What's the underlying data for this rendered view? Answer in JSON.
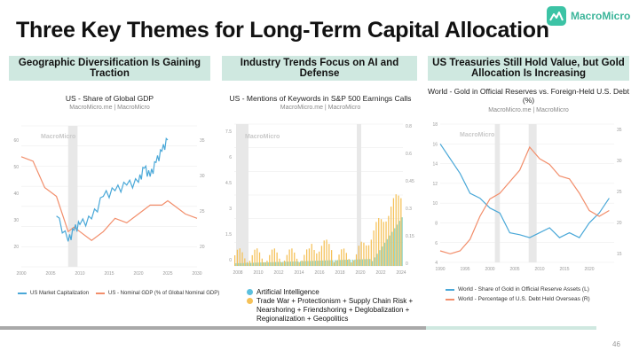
{
  "slide": {
    "title": "Three Key Themes for Long-Term Capital Allocation",
    "logo_text": "MacroMicro",
    "page_number": "46",
    "accent_color": "#cfe8e0",
    "brand_color": "#3cc3a5"
  },
  "columns": [
    {
      "header": "Geographic Diversification Is Gaining Traction",
      "chart_title": "US - Share of Global GDP",
      "chart_source": "MacroMicro.me | MacroMicro",
      "watermark": "MacroMicro",
      "legend": [
        {
          "label": "US Market Capitalization",
          "color": "#4aa8d8"
        },
        {
          "label": "US - Nominal GDP (% of Global Nominal GDP)",
          "color": "#f28e6b"
        }
      ]
    },
    {
      "header": "Industry Trends Focus on AI and Defense",
      "chart_title": "US - Mentions of Keywords in S&P 500 Earnings Calls",
      "chart_source": "MacroMicro.me | MacroMicro",
      "watermark": "MacroMicro",
      "legend": [
        {
          "label": "Artificial Intelligence",
          "color": "#5cc0de"
        },
        {
          "label": "Trade War + Protectionism + Supply Chain Risk + Nearshoring + Friendshoring + Deglobalization + Regionalization + Geopolitics",
          "color": "#f5c158"
        }
      ]
    },
    {
      "header": "US Treasuries Still Hold Value, but Gold Allocation Is Increasing",
      "chart_title": "World - Gold in Official Reserves vs. Foreign-Held U.S. Debt (%)",
      "chart_source": "MacroMicro.me | MacroMicro",
      "watermark": "MacroMicro",
      "legend": [
        {
          "label": "World - Share of Gold in Official Reserve Assets (L)",
          "color": "#4aa8d8"
        },
        {
          "label": "World - Percentage of U.S. Debt Held Overseas (R)",
          "color": "#f28e6b"
        }
      ]
    }
  ],
  "chart_data": [
    {
      "type": "line",
      "title": "US - Share of Global GDP",
      "x": [
        2000,
        2002,
        2004,
        2006,
        2008,
        2009,
        2010,
        2012,
        2014,
        2016,
        2018,
        2020,
        2021,
        2022,
        2023,
        2024,
        2025,
        2026,
        2028,
        2030
      ],
      "xticks": [
        "2000",
        "2005",
        "2010",
        "2015",
        "2020",
        "2025",
        "2030"
      ],
      "series": [
        {
          "name": "US Market Capitalization",
          "axis": "left",
          "values": [
            null,
            null,
            null,
            33,
            24,
            28,
            30,
            32,
            40,
            42,
            44,
            45,
            50,
            47,
            52,
            56,
            60,
            null,
            null,
            null
          ]
        },
        {
          "name": "US - Nominal GDP (% of Global Nominal GDP)",
          "axis": "right",
          "values": [
            31.5,
            31,
            28,
            27,
            23,
            23.5,
            23,
            22,
            23,
            24.5,
            24,
            25,
            25.5,
            26,
            26,
            26,
            26.5,
            26,
            25,
            24.5
          ]
        }
      ],
      "ylim_left": [
        15,
        65
      ],
      "ylim_right": [
        19,
        35
      ]
    },
    {
      "type": "bar",
      "title": "US - Mentions of Keywords in S&P 500 Earnings Calls",
      "xticks": [
        "2008",
        "2010",
        "2012",
        "2014",
        "2016",
        "2018",
        "2020",
        "2022",
        "2024"
      ],
      "series": [
        {
          "name": "Artificial Intelligence",
          "axis": "left",
          "color": "#5cc0de"
        },
        {
          "name": "Trade War + Protectionism + Supply Chain Risk + Nearshoring + Friendshoring + Deglobalization + Regionalization + Geopolitics",
          "axis": "right",
          "color": "#f5c158"
        }
      ],
      "ylim_left": [
        0,
        9
      ],
      "ylim_right": [
        0,
        0.9
      ]
    },
    {
      "type": "line",
      "title": "World - Gold in Official Reserves vs. Foreign-Held U.S. Debt (%)",
      "x": [
        1990,
        1992,
        1994,
        1996,
        1998,
        2000,
        2002,
        2004,
        2006,
        2008,
        2010,
        2012,
        2014,
        2016,
        2018,
        2020,
        2022,
        2024
      ],
      "xticks": [
        "1990",
        "1995",
        "2000",
        "2005",
        "2010",
        "2015",
        "2020"
      ],
      "series": [
        {
          "name": "World - Share of Gold in Official Reserve Assets (L)",
          "axis": "left",
          "values": [
            16,
            14.5,
            13,
            11,
            10.5,
            9.5,
            9,
            7,
            6.8,
            6.5,
            7,
            7.5,
            6.5,
            7,
            6.5,
            8,
            9,
            10.5
          ]
        },
        {
          "name": "World - Percentage of U.S. Debt Held Overseas (R)",
          "axis": "right",
          "values": [
            15,
            14.5,
            15,
            17,
            21,
            24,
            25,
            27,
            29,
            33,
            31,
            30,
            28,
            27.5,
            25,
            22,
            21,
            22
          ]
        }
      ],
      "ylim_left": [
        4,
        18
      ],
      "ylim_right": [
        13,
        37
      ]
    }
  ]
}
